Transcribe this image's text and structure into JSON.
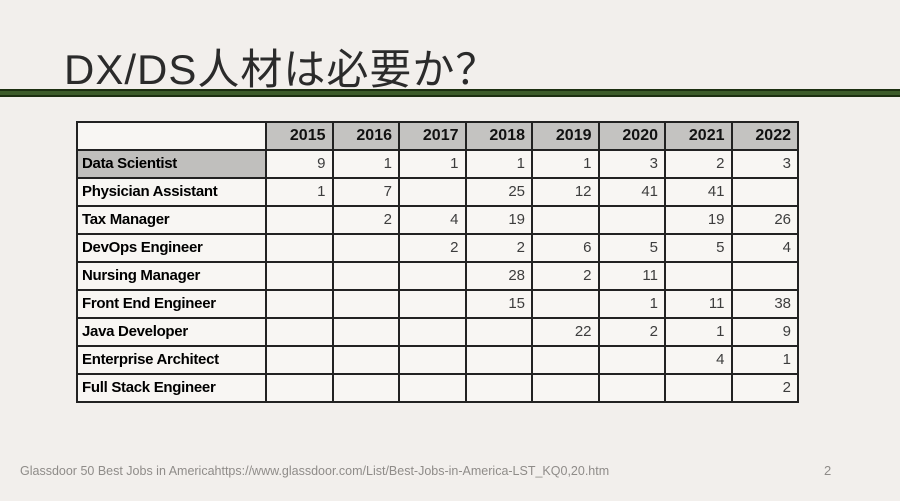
{
  "slide": {
    "title": "DX/DS人材は必要か？",
    "footer": {
      "source_text": "Glassdoor 50 Best Jobs in Americahttps://www.glassdoor.com/List/Best-Jobs-in-America-LST_KQ0,20.htm",
      "page_number": "2"
    },
    "colors": {
      "background": "#f2efec",
      "accent_line": "#3d5c2a",
      "accent_line_edge": "#1d2f11",
      "table_header_fill": "#c4c3c1",
      "table_cell_fill": "#f8f6f3",
      "table_border": "#222222",
      "footer_text": "#8f8c89"
    },
    "table": {
      "corner_label": "",
      "year_headers": [
        "2015",
        "2016",
        "2017",
        "2018",
        "2019",
        "2020",
        "2021",
        "2022"
      ],
      "rows": [
        {
          "label": "Data Scientist",
          "highlight": true,
          "values": [
            "9",
            "1",
            "1",
            "1",
            "1",
            "3",
            "2",
            "3"
          ]
        },
        {
          "label": "Physician Assistant",
          "highlight": false,
          "values": [
            "1",
            "7",
            "",
            "25",
            "12",
            "41",
            "41",
            ""
          ]
        },
        {
          "label": "Tax Manager",
          "highlight": false,
          "values": [
            "",
            "2",
            "4",
            "19",
            "",
            "",
            "19",
            "26"
          ]
        },
        {
          "label": "DevOps Engineer",
          "highlight": false,
          "values": [
            "",
            "",
            "2",
            "2",
            "6",
            "5",
            "5",
            "4"
          ]
        },
        {
          "label": "Nursing Manager",
          "highlight": false,
          "values": [
            "",
            "",
            "",
            "28",
            "2",
            "11",
            "",
            ""
          ]
        },
        {
          "label": "Front End Engineer",
          "highlight": false,
          "values": [
            "",
            "",
            "",
            "15",
            "",
            "1",
            "11",
            "38"
          ]
        },
        {
          "label": "Java Developer",
          "highlight": false,
          "values": [
            "",
            "",
            "",
            "",
            "22",
            "2",
            "1",
            "9"
          ]
        },
        {
          "label": "Enterprise Architect",
          "highlight": false,
          "values": [
            "",
            "",
            "",
            "",
            "",
            "",
            "4",
            "1"
          ]
        },
        {
          "label": "Full Stack Engineer",
          "highlight": false,
          "values": [
            "",
            "",
            "",
            "",
            "",
            "",
            "",
            "2"
          ]
        }
      ]
    }
  }
}
